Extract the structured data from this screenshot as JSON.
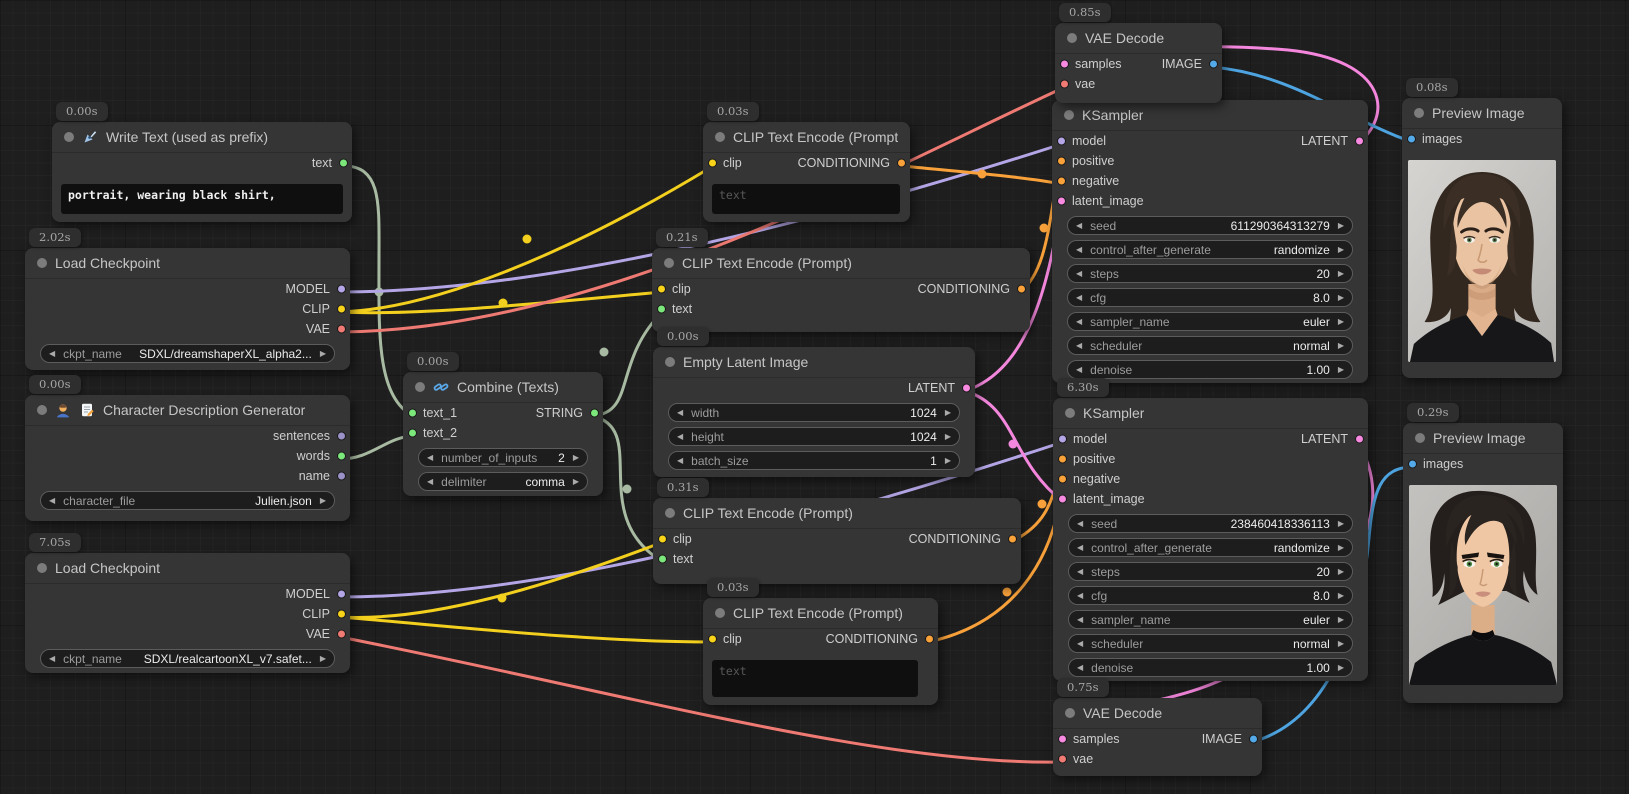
{
  "colors": {
    "ports": {
      "model": "#b4a6e6",
      "clip": "#f8d319",
      "vae": "#f07a74",
      "conditioning": "#f9a23a",
      "latent": "#f78ae0",
      "image": "#54a9e8",
      "text": "#7ce87c",
      "string": "#7ce87c",
      "generic": "#9b93c8"
    },
    "wires": {
      "model": "#b4a6e6",
      "clip": "#f3cf1e",
      "vae": "#ee7a73",
      "conditioning": "#f8a13a",
      "latent": "#f487dd",
      "image": "#4da4e0",
      "text": "#a8bba2"
    },
    "node_bg": "#353535",
    "canvas_bg": "#1e1e1e"
  },
  "nodes": [
    {
      "id": "write_text",
      "timer": "0.00s",
      "title": "Write Text (used as prefix)",
      "icons": [
        "pen-icon"
      ],
      "inputs": [],
      "outputs": [
        {
          "name": "text",
          "type": "text"
        }
      ],
      "widgets": [],
      "textarea": {
        "value": "portrait, wearing black shirt,"
      }
    },
    {
      "id": "load_checkpoint_1",
      "timer": "2.02s",
      "title": "Load Checkpoint",
      "icons": [],
      "inputs": [],
      "outputs": [
        {
          "name": "MODEL",
          "type": "model"
        },
        {
          "name": "CLIP",
          "type": "clip"
        },
        {
          "name": "VAE",
          "type": "vae"
        }
      ],
      "widgets": [
        {
          "label": "ckpt_name",
          "value": "SDXL/dreamshaperXL_alpha2..."
        }
      ]
    },
    {
      "id": "character_generator",
      "timer": "0.00s",
      "title": "Character Description Generator",
      "icons": [
        "person-icon",
        "memo-icon"
      ],
      "inputs": [],
      "outputs": [
        {
          "name": "sentences",
          "type": "generic"
        },
        {
          "name": "words",
          "type": "text"
        },
        {
          "name": "name",
          "type": "generic"
        }
      ],
      "widgets": [
        {
          "label": "character_file",
          "value": "Julien.json"
        }
      ]
    },
    {
      "id": "load_checkpoint_2",
      "timer": "7.05s",
      "title": "Load Checkpoint",
      "icons": [],
      "inputs": [],
      "outputs": [
        {
          "name": "MODEL",
          "type": "model"
        },
        {
          "name": "CLIP",
          "type": "clip"
        },
        {
          "name": "VAE",
          "type": "vae"
        }
      ],
      "widgets": [
        {
          "label": "ckpt_name",
          "value": "SDXL/realcartoonXL_v7.safet..."
        }
      ]
    },
    {
      "id": "combine_texts",
      "timer": "0.00s",
      "title": "Combine (Texts)",
      "icons": [
        "link-icon"
      ],
      "inputs": [
        {
          "name": "text_1",
          "type": "text"
        },
        {
          "name": "text_2",
          "type": "text"
        }
      ],
      "outputs": [
        {
          "name": "STRING",
          "type": "string"
        }
      ],
      "widgets": [
        {
          "label": "number_of_inputs",
          "value": "2"
        },
        {
          "label": "delimiter",
          "value": "comma"
        }
      ]
    },
    {
      "id": "clip_encode_1",
      "timer": "0.03s",
      "title": "CLIP Text Encode (Prompt)",
      "icons": [],
      "inputs": [
        {
          "name": "clip",
          "type": "clip"
        }
      ],
      "outputs": [
        {
          "name": "CONDITIONING",
          "type": "conditioning"
        }
      ],
      "widgets": [],
      "textarea": {
        "placeholder": "text"
      }
    },
    {
      "id": "clip_encode_2",
      "timer": "0.21s",
      "title": "CLIP Text Encode (Prompt)",
      "icons": [],
      "inputs": [
        {
          "name": "clip",
          "type": "clip"
        },
        {
          "name": "text",
          "type": "text"
        }
      ],
      "outputs": [
        {
          "name": "CONDITIONING",
          "type": "conditioning"
        }
      ],
      "widgets": []
    },
    {
      "id": "empty_latent",
      "timer": "0.00s",
      "title": "Empty Latent Image",
      "icons": [],
      "inputs": [],
      "outputs": [
        {
          "name": "LATENT",
          "type": "latent"
        }
      ],
      "widgets": [
        {
          "label": "width",
          "value": "1024"
        },
        {
          "label": "height",
          "value": "1024"
        },
        {
          "label": "batch_size",
          "value": "1"
        }
      ]
    },
    {
      "id": "clip_encode_3",
      "timer": "0.31s",
      "title": "CLIP Text Encode (Prompt)",
      "icons": [],
      "inputs": [
        {
          "name": "clip",
          "type": "clip"
        },
        {
          "name": "text",
          "type": "text"
        }
      ],
      "outputs": [
        {
          "name": "CONDITIONING",
          "type": "conditioning"
        }
      ],
      "widgets": []
    },
    {
      "id": "clip_encode_4",
      "timer": "0.03s",
      "title": "CLIP Text Encode (Prompt)",
      "icons": [],
      "inputs": [
        {
          "name": "clip",
          "type": "clip"
        }
      ],
      "outputs": [
        {
          "name": "CONDITIONING",
          "type": "conditioning"
        }
      ],
      "widgets": [],
      "textarea": {
        "placeholder": "text"
      }
    },
    {
      "id": "vae_decode_1",
      "timer": "0.85s",
      "title": "VAE Decode",
      "icons": [],
      "inputs": [
        {
          "name": "samples",
          "type": "latent"
        },
        {
          "name": "vae",
          "type": "vae"
        }
      ],
      "outputs": [
        {
          "name": "IMAGE",
          "type": "image"
        }
      ],
      "widgets": []
    },
    {
      "id": "ksampler_1",
      "title": "KSampler",
      "icons": [],
      "inputs": [
        {
          "name": "model",
          "type": "model"
        },
        {
          "name": "positive",
          "type": "conditioning"
        },
        {
          "name": "negative",
          "type": "conditioning"
        },
        {
          "name": "latent_image",
          "type": "latent"
        }
      ],
      "outputs": [
        {
          "name": "LATENT",
          "type": "latent"
        }
      ],
      "widgets": [
        {
          "label": "seed",
          "value": "611290364313279"
        },
        {
          "label": "control_after_generate",
          "value": "randomize"
        },
        {
          "label": "steps",
          "value": "20"
        },
        {
          "label": "cfg",
          "value": "8.0"
        },
        {
          "label": "sampler_name",
          "value": "euler"
        },
        {
          "label": "scheduler",
          "value": "normal"
        },
        {
          "label": "denoise",
          "value": "1.00"
        }
      ]
    },
    {
      "id": "ksampler_2",
      "timer": "6.30s",
      "title": "KSampler",
      "icons": [],
      "inputs": [
        {
          "name": "model",
          "type": "model"
        },
        {
          "name": "positive",
          "type": "conditioning"
        },
        {
          "name": "negative",
          "type": "conditioning"
        },
        {
          "name": "latent_image",
          "type": "latent"
        }
      ],
      "outputs": [
        {
          "name": "LATENT",
          "type": "latent"
        }
      ],
      "widgets": [
        {
          "label": "seed",
          "value": "238460418336113"
        },
        {
          "label": "control_after_generate",
          "value": "randomize"
        },
        {
          "label": "steps",
          "value": "20"
        },
        {
          "label": "cfg",
          "value": "8.0"
        },
        {
          "label": "sampler_name",
          "value": "euler"
        },
        {
          "label": "scheduler",
          "value": "normal"
        },
        {
          "label": "denoise",
          "value": "1.00"
        }
      ]
    },
    {
      "id": "vae_decode_2",
      "timer": "0.75s",
      "title": "VAE Decode",
      "icons": [],
      "inputs": [
        {
          "name": "samples",
          "type": "latent"
        },
        {
          "name": "vae",
          "type": "vae"
        }
      ],
      "outputs": [
        {
          "name": "IMAGE",
          "type": "image"
        }
      ],
      "widgets": []
    },
    {
      "id": "preview_1",
      "timer": "0.08s",
      "title": "Preview Image",
      "icons": [],
      "inputs": [
        {
          "name": "images",
          "type": "image"
        }
      ],
      "outputs": [],
      "widgets": [],
      "photo": "male-portrait-photo"
    },
    {
      "id": "preview_2",
      "timer": "0.29s",
      "title": "Preview Image",
      "icons": [],
      "inputs": [
        {
          "name": "images",
          "type": "image"
        }
      ],
      "outputs": [],
      "widgets": [],
      "photo": "male-portrait-cartoon"
    }
  ],
  "links": [
    {
      "from": "write_text.text",
      "to": "combine_texts.text_1",
      "type": "text"
    },
    {
      "from": "character_generator.words",
      "to": "combine_texts.text_2",
      "type": "text"
    },
    {
      "from": "combine_texts.STRING",
      "to": "clip_encode_2.text",
      "type": "text"
    },
    {
      "from": "combine_texts.STRING",
      "to": "clip_encode_3.text",
      "type": "text"
    },
    {
      "from": "load_checkpoint_1.MODEL",
      "to": "ksampler_1.model",
      "type": "model"
    },
    {
      "from": "load_checkpoint_1.CLIP",
      "to": "clip_encode_1.clip",
      "type": "clip"
    },
    {
      "from": "load_checkpoint_1.CLIP",
      "to": "clip_encode_2.clip",
      "type": "clip"
    },
    {
      "from": "load_checkpoint_1.VAE",
      "to": "vae_decode_1.vae",
      "type": "vae"
    },
    {
      "from": "load_checkpoint_2.MODEL",
      "to": "ksampler_2.model",
      "type": "model"
    },
    {
      "from": "load_checkpoint_2.CLIP",
      "to": "clip_encode_3.clip",
      "type": "clip"
    },
    {
      "from": "load_checkpoint_2.CLIP",
      "to": "clip_encode_4.clip",
      "type": "clip"
    },
    {
      "from": "load_checkpoint_2.VAE",
      "to": "vae_decode_2.vae",
      "type": "vae"
    },
    {
      "from": "clip_encode_1.CONDITIONING",
      "to": "ksampler_1.negative",
      "type": "conditioning"
    },
    {
      "from": "clip_encode_2.CONDITIONING",
      "to": "ksampler_1.positive",
      "type": "conditioning"
    },
    {
      "from": "clip_encode_3.CONDITIONING",
      "to": "ksampler_2.positive",
      "type": "conditioning"
    },
    {
      "from": "clip_encode_4.CONDITIONING",
      "to": "ksampler_2.negative",
      "type": "conditioning"
    },
    {
      "from": "empty_latent.LATENT",
      "to": "ksampler_1.latent_image",
      "type": "latent"
    },
    {
      "from": "empty_latent.LATENT",
      "to": "ksampler_2.latent_image",
      "type": "latent"
    },
    {
      "from": "ksampler_1.LATENT",
      "to": "vae_decode_1.samples",
      "type": "latent"
    },
    {
      "from": "ksampler_2.LATENT",
      "to": "vae_decode_2.samples",
      "type": "latent"
    },
    {
      "from": "vae_decode_1.IMAGE",
      "to": "preview_1.images",
      "type": "image"
    },
    {
      "from": "vae_decode_2.IMAGE",
      "to": "preview_2.images",
      "type": "image"
    }
  ]
}
